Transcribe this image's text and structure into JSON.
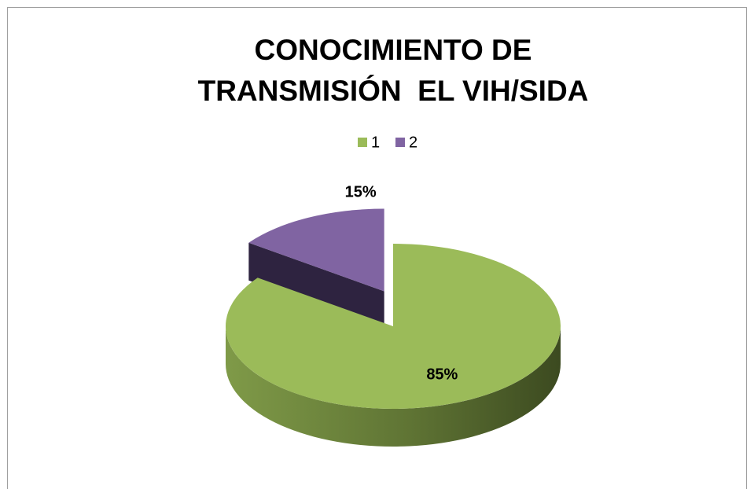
{
  "chart_data": {
    "type": "pie",
    "title": "CONOCIMIENTO DE TRANSMISIÓN  EL VIH/SIDA",
    "categories": [
      "1",
      "2"
    ],
    "values": [
      85,
      15
    ],
    "value_labels": [
      "85%",
      "15%"
    ],
    "colors": [
      "#9bbb59",
      "#8064a2"
    ],
    "explode": [
      0,
      50
    ],
    "legend": "top"
  }
}
